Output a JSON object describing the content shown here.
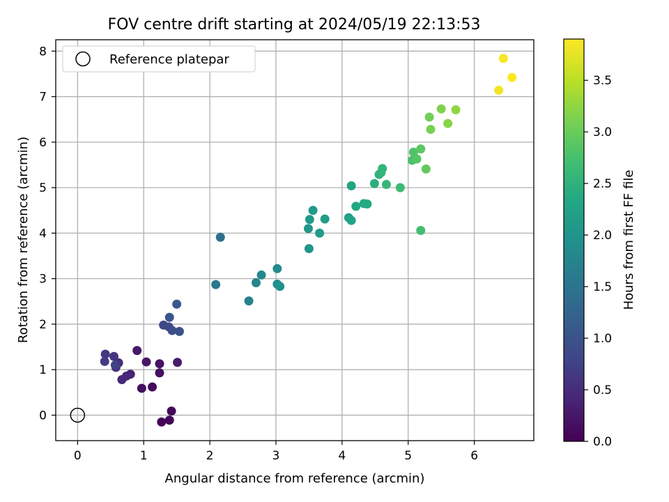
{
  "chart_data": {
    "type": "scatter",
    "title": "FOV centre drift starting at 2024/05/19 22:13:53",
    "xlabel": "Angular distance from reference (arcmin)",
    "ylabel": "Rotation from reference (arcmin)",
    "xlim": [
      -0.33,
      6.9
    ],
    "ylim": [
      -0.56,
      8.25
    ],
    "xticks": [
      0,
      1,
      2,
      3,
      4,
      5,
      6
    ],
    "yticks": [
      0,
      1,
      2,
      3,
      4,
      5,
      6,
      7,
      8
    ],
    "grid": true,
    "legend": {
      "placement": "top-left",
      "entries": [
        "Reference platepar"
      ]
    },
    "reference_point": {
      "x": 0,
      "y": 0
    },
    "colorbar": {
      "label": "Hours from first FF file",
      "colormap": "viridis",
      "range": [
        0,
        3.9
      ],
      "ticks": [
        "0.0",
        "0.5",
        "1.0",
        "1.5",
        "2.0",
        "2.5",
        "3.0",
        "3.5"
      ]
    },
    "points": [
      {
        "x": 1.27,
        "y": -0.15,
        "c": 0.02
      },
      {
        "x": 1.39,
        "y": -0.11,
        "c": 0.04
      },
      {
        "x": 1.42,
        "y": 0.09,
        "c": 0.06
      },
      {
        "x": 1.13,
        "y": 0.62,
        "c": 0.12
      },
      {
        "x": 0.97,
        "y": 0.59,
        "c": 0.14
      },
      {
        "x": 1.24,
        "y": 0.93,
        "c": 0.17
      },
      {
        "x": 1.24,
        "y": 1.13,
        "c": 0.2
      },
      {
        "x": 1.04,
        "y": 1.17,
        "c": 0.23
      },
      {
        "x": 0.9,
        "y": 1.42,
        "c": 0.26
      },
      {
        "x": 1.51,
        "y": 1.16,
        "c": 0.3
      },
      {
        "x": 0.8,
        "y": 0.9,
        "c": 0.36
      },
      {
        "x": 0.74,
        "y": 0.86,
        "c": 0.4
      },
      {
        "x": 0.67,
        "y": 0.78,
        "c": 0.45
      },
      {
        "x": 0.62,
        "y": 1.15,
        "c": 0.5
      },
      {
        "x": 0.58,
        "y": 1.05,
        "c": 0.55
      },
      {
        "x": 0.55,
        "y": 1.29,
        "c": 0.6
      },
      {
        "x": 0.42,
        "y": 1.34,
        "c": 0.65
      },
      {
        "x": 0.41,
        "y": 1.18,
        "c": 0.7
      },
      {
        "x": 0.57,
        "y": 1.1,
        "c": 0.75
      },
      {
        "x": 1.3,
        "y": 1.98,
        "c": 0.82
      },
      {
        "x": 1.38,
        "y": 1.94,
        "c": 0.87
      },
      {
        "x": 1.43,
        "y": 1.86,
        "c": 0.92
      },
      {
        "x": 1.54,
        "y": 1.84,
        "c": 0.97
      },
      {
        "x": 1.39,
        "y": 2.15,
        "c": 1.02
      },
      {
        "x": 1.5,
        "y": 2.44,
        "c": 1.08
      },
      {
        "x": 2.16,
        "y": 3.91,
        "c": 1.42
      },
      {
        "x": 2.09,
        "y": 2.87,
        "c": 1.58
      },
      {
        "x": 2.59,
        "y": 2.51,
        "c": 1.72
      },
      {
        "x": 2.7,
        "y": 2.91,
        "c": 1.78
      },
      {
        "x": 2.78,
        "y": 3.08,
        "c": 1.82
      },
      {
        "x": 3.02,
        "y": 3.22,
        "c": 1.85
      },
      {
        "x": 3.02,
        "y": 2.88,
        "c": 1.9
      },
      {
        "x": 3.06,
        "y": 2.83,
        "c": 1.95
      },
      {
        "x": 3.5,
        "y": 3.66,
        "c": 2.02
      },
      {
        "x": 3.49,
        "y": 4.1,
        "c": 2.05
      },
      {
        "x": 3.51,
        "y": 4.3,
        "c": 2.08
      },
      {
        "x": 3.56,
        "y": 4.5,
        "c": 2.1
      },
      {
        "x": 3.66,
        "y": 4.0,
        "c": 2.12
      },
      {
        "x": 3.74,
        "y": 4.31,
        "c": 2.15
      },
      {
        "x": 4.1,
        "y": 4.34,
        "c": 2.22
      },
      {
        "x": 4.14,
        "y": 4.28,
        "c": 2.25
      },
      {
        "x": 4.14,
        "y": 5.04,
        "c": 2.28
      },
      {
        "x": 4.21,
        "y": 4.59,
        "c": 2.32
      },
      {
        "x": 4.33,
        "y": 4.65,
        "c": 2.35
      },
      {
        "x": 4.38,
        "y": 4.64,
        "c": 2.38
      },
      {
        "x": 4.49,
        "y": 5.09,
        "c": 2.45
      },
      {
        "x": 4.56,
        "y": 5.29,
        "c": 2.5
      },
      {
        "x": 4.59,
        "y": 5.33,
        "c": 2.52
      },
      {
        "x": 4.61,
        "y": 5.42,
        "c": 2.55
      },
      {
        "x": 4.67,
        "y": 5.07,
        "c": 2.58
      },
      {
        "x": 4.88,
        "y": 5.0,
        "c": 2.65
      },
      {
        "x": 5.19,
        "y": 4.06,
        "c": 2.72
      },
      {
        "x": 5.06,
        "y": 5.6,
        "c": 2.78
      },
      {
        "x": 5.08,
        "y": 5.78,
        "c": 2.82
      },
      {
        "x": 5.13,
        "y": 5.63,
        "c": 2.86
      },
      {
        "x": 5.19,
        "y": 5.85,
        "c": 2.9
      },
      {
        "x": 5.27,
        "y": 5.41,
        "c": 2.95
      },
      {
        "x": 5.32,
        "y": 6.55,
        "c": 3.05
      },
      {
        "x": 5.34,
        "y": 6.28,
        "c": 3.1
      },
      {
        "x": 5.5,
        "y": 6.73,
        "c": 3.15
      },
      {
        "x": 5.6,
        "y": 6.41,
        "c": 3.2
      },
      {
        "x": 5.72,
        "y": 6.71,
        "c": 3.25
      },
      {
        "x": 6.37,
        "y": 7.14,
        "c": 3.82
      },
      {
        "x": 6.44,
        "y": 7.84,
        "c": 3.86
      },
      {
        "x": 6.57,
        "y": 7.42,
        "c": 3.9
      }
    ]
  }
}
